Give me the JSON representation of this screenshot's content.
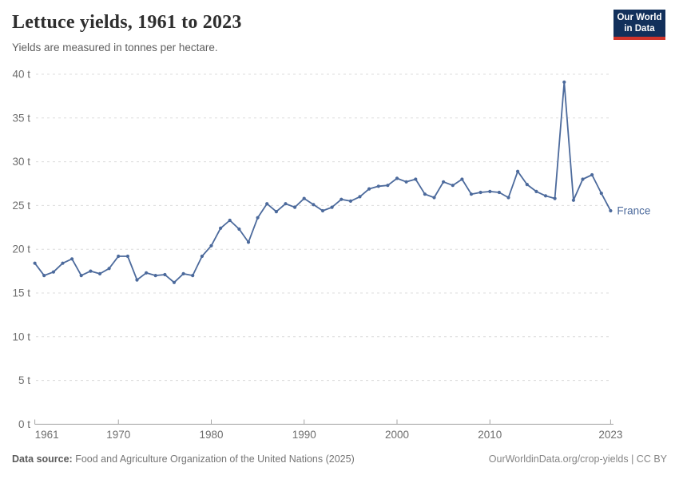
{
  "header": {
    "title": "Lettuce yields, 1961 to 2023",
    "subtitle": "Yields are measured in tonnes per hectare.",
    "logo_line1": "Our World",
    "logo_line2": "in Data"
  },
  "chart_data": {
    "type": "line",
    "title": "Lettuce yields, 1961 to 2023",
    "ylabel": "tonnes per hectare",
    "xlabel": "",
    "xlim": [
      1961,
      2023
    ],
    "ylim": [
      0,
      40
    ],
    "x_ticks": [
      1961,
      1970,
      1980,
      1990,
      2000,
      2010,
      2023
    ],
    "y_ticks": [
      0,
      5,
      10,
      15,
      20,
      25,
      30,
      35,
      40
    ],
    "y_tick_suffix": " t",
    "grid": "horizontal-dashed",
    "legend_position": "end-of-line-label",
    "series": [
      {
        "name": "France",
        "color": "#4C6A9C",
        "points": [
          [
            1961,
            18.4
          ],
          [
            1962,
            17.0
          ],
          [
            1963,
            17.4
          ],
          [
            1964,
            18.4
          ],
          [
            1965,
            18.9
          ],
          [
            1966,
            17.0
          ],
          [
            1967,
            17.5
          ],
          [
            1968,
            17.2
          ],
          [
            1969,
            17.8
          ],
          [
            1970,
            19.2
          ],
          [
            1971,
            19.2
          ],
          [
            1972,
            16.5
          ],
          [
            1973,
            17.3
          ],
          [
            1974,
            17.0
          ],
          [
            1975,
            17.1
          ],
          [
            1976,
            16.2
          ],
          [
            1977,
            17.2
          ],
          [
            1978,
            17.0
          ],
          [
            1979,
            19.2
          ],
          [
            1980,
            20.4
          ],
          [
            1981,
            22.4
          ],
          [
            1982,
            23.3
          ],
          [
            1983,
            22.3
          ],
          [
            1984,
            20.8
          ],
          [
            1985,
            23.6
          ],
          [
            1986,
            25.2
          ],
          [
            1987,
            24.3
          ],
          [
            1988,
            25.2
          ],
          [
            1989,
            24.8
          ],
          [
            1990,
            25.8
          ],
          [
            1991,
            25.1
          ],
          [
            1992,
            24.4
          ],
          [
            1993,
            24.8
          ],
          [
            1994,
            25.7
          ],
          [
            1995,
            25.5
          ],
          [
            1996,
            26.0
          ],
          [
            1997,
            26.9
          ],
          [
            1998,
            27.2
          ],
          [
            1999,
            27.3
          ],
          [
            2000,
            28.1
          ],
          [
            2001,
            27.7
          ],
          [
            2002,
            28.0
          ],
          [
            2003,
            26.3
          ],
          [
            2004,
            25.9
          ],
          [
            2005,
            27.7
          ],
          [
            2006,
            27.3
          ],
          [
            2007,
            28.0
          ],
          [
            2008,
            26.3
          ],
          [
            2009,
            26.5
          ],
          [
            2010,
            26.6
          ],
          [
            2011,
            26.5
          ],
          [
            2012,
            25.9
          ],
          [
            2013,
            28.9
          ],
          [
            2014,
            27.4
          ],
          [
            2015,
            26.6
          ],
          [
            2016,
            26.1
          ],
          [
            2017,
            25.8
          ],
          [
            2018,
            39.1
          ],
          [
            2019,
            25.6
          ],
          [
            2020,
            28.0
          ],
          [
            2021,
            28.5
          ],
          [
            2022,
            26.4
          ],
          [
            2023,
            24.4
          ]
        ]
      }
    ]
  },
  "footer": {
    "source_label": "Data source:",
    "source_text": "Food and Agriculture Organization of the United Nations (2025)",
    "credit": "OurWorldinData.org/crop-yields | CC BY"
  },
  "colors": {
    "line": "#4C6A9C",
    "grid": "#dcdcdc",
    "axis": "#a5a5a5",
    "tick_label": "#6e6e6e",
    "logo_bg": "#12305b",
    "logo_red": "#d0342b"
  }
}
